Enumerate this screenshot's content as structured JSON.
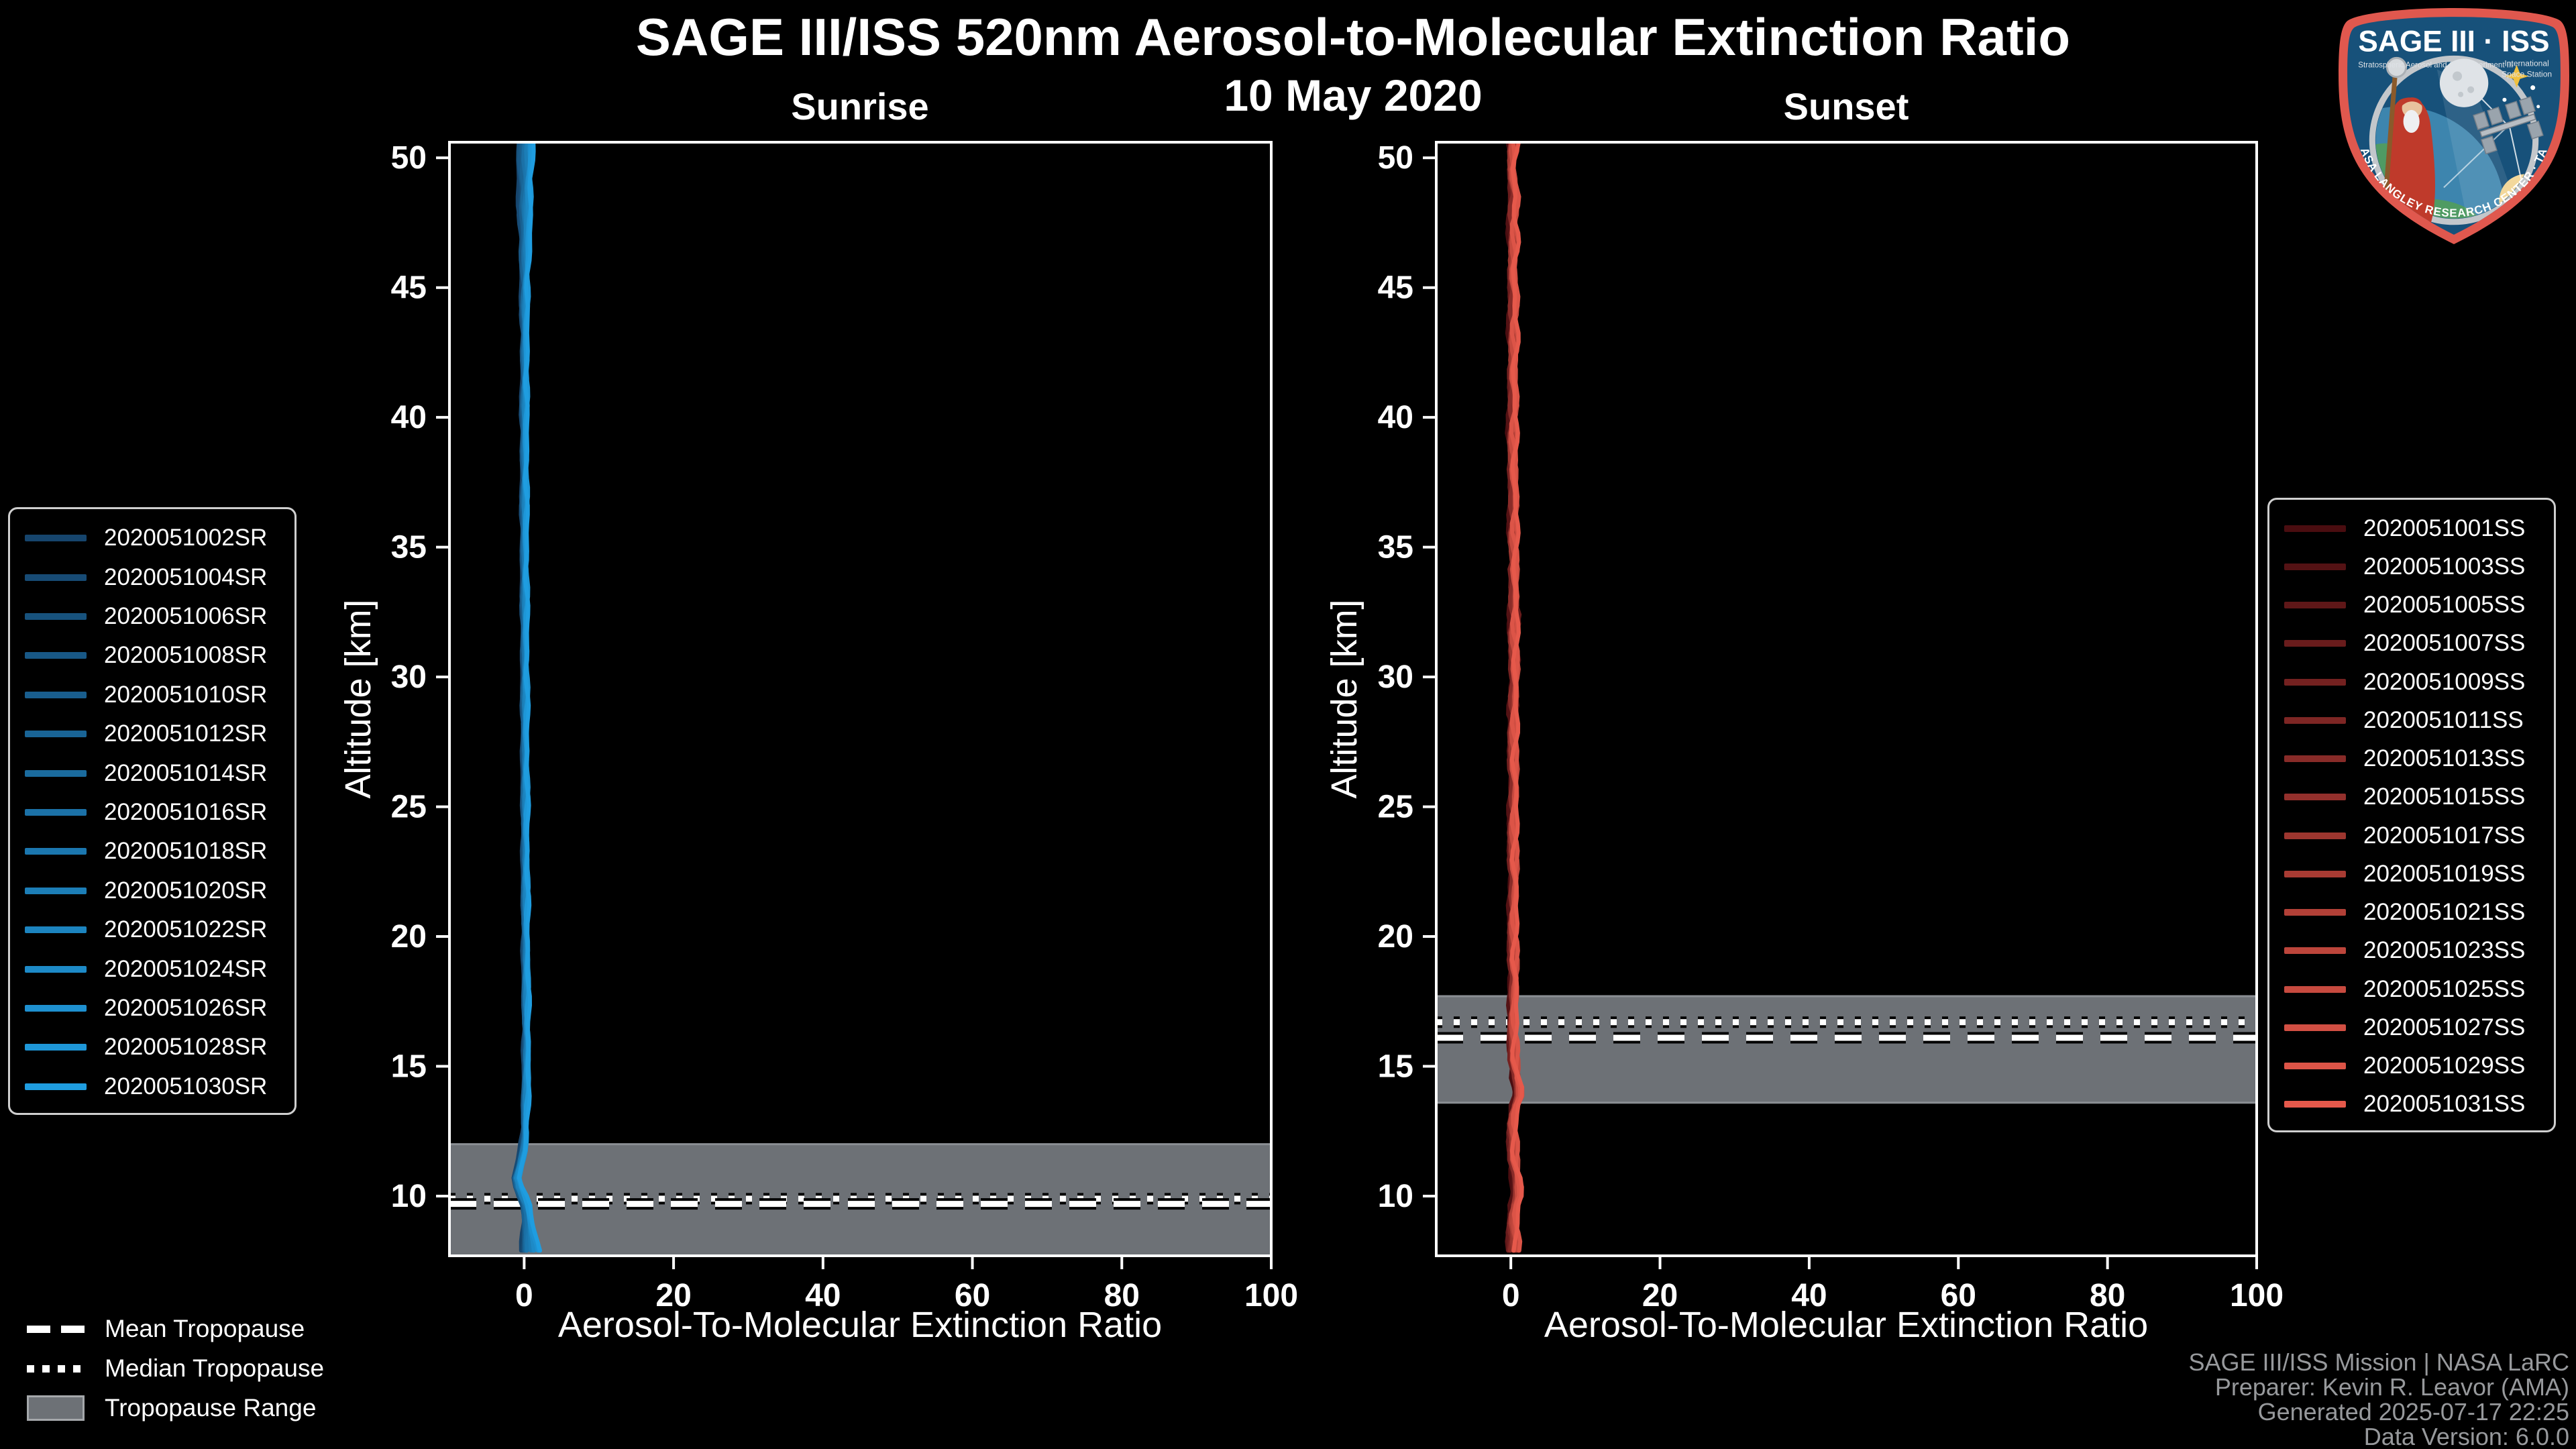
{
  "title": "SAGE III/ISS 520nm Aerosol-to-Molecular Extinction Ratio",
  "subtitle": "10 May 2020",
  "footer": {
    "lines": [
      "SAGE III/ISS Mission | NASA LaRC",
      "Preparer: Kevin R. Leavor (AMA)",
      "Generated 2025-07-17 22:25",
      "Data Version: 6.0.0"
    ]
  },
  "tropopause_legend": {
    "mean": "Mean Tropopause",
    "median": "Median Tropopause",
    "range": "Tropopause Range",
    "band_color": "#6d7176"
  },
  "logo": {
    "title": "SAGE III · ISS",
    "subtitle_left": "Stratospheric Aerosol and Gas Experiment III",
    "subtitle_right_1": "International",
    "subtitle_right_2": "Space Station",
    "bottom_text": "BALL · NASA LANGLEY RESEARCH CENTER · TAS-I · ESA",
    "border_color": "#e0584e",
    "field_color": "#17517a"
  },
  "chart_data": [
    {
      "type": "line",
      "panel": "Sunrise",
      "xlabel": "Aerosol-To-Molecular Extinction Ratio",
      "ylabel": "Altitude [km]",
      "xlim": [
        -10,
        100
      ],
      "ylim": [
        7.7,
        50.6
      ],
      "xticks": [
        0,
        20,
        40,
        60,
        80,
        100
      ],
      "yticks": [
        10,
        15,
        20,
        25,
        30,
        35,
        40,
        45,
        50
      ],
      "line_color_start": "#16456d",
      "line_color_end": "#1f9de0",
      "series_ids": [
        "2020051002SR",
        "2020051004SR",
        "2020051006SR",
        "2020051008SR",
        "2020051010SR",
        "2020051012SR",
        "2020051014SR",
        "2020051016SR",
        "2020051018SR",
        "2020051020SR",
        "2020051022SR",
        "2020051024SR",
        "2020051026SR",
        "2020051028SR",
        "2020051030SR"
      ],
      "profile_center": [
        [
          50.6,
          0.15
        ],
        [
          48,
          0.1
        ],
        [
          46,
          0.12
        ],
        [
          44,
          0.05
        ],
        [
          42,
          0.1
        ],
        [
          40,
          0.02
        ],
        [
          38,
          0.06
        ],
        [
          36,
          0.02
        ],
        [
          34,
          0.06
        ],
        [
          32,
          0.08
        ],
        [
          30,
          0.1
        ],
        [
          28,
          0.1
        ],
        [
          26,
          0.12
        ],
        [
          24,
          0.14
        ],
        [
          22,
          0.16
        ],
        [
          20,
          0.2
        ],
        [
          18,
          0.24
        ],
        [
          16,
          0.3
        ],
        [
          14.5,
          0.26
        ],
        [
          13.5,
          0.18
        ],
        [
          12.5,
          0.1
        ],
        [
          11.8,
          -0.1
        ],
        [
          11.2,
          -0.6
        ],
        [
          10.6,
          -1.15
        ],
        [
          10.1,
          -0.45
        ],
        [
          9.7,
          0.2
        ],
        [
          9.2,
          0.35
        ],
        [
          8.6,
          0.3
        ],
        [
          8.0,
          0.35
        ],
        [
          7.7,
          0.3
        ]
      ],
      "tropopause": {
        "mean_km": 9.7,
        "median_km": 9.9,
        "range_top_km": 12.0,
        "range_bottom_km": 7.7
      }
    },
    {
      "type": "line",
      "panel": "Sunset",
      "xlabel": "Aerosol-To-Molecular Extinction Ratio",
      "ylabel": "Altitude [km]",
      "xlim": [
        -10,
        100
      ],
      "ylim": [
        7.7,
        50.6
      ],
      "xticks": [
        0,
        20,
        40,
        60,
        80,
        100
      ],
      "yticks": [
        10,
        15,
        20,
        25,
        30,
        35,
        40,
        45,
        50
      ],
      "line_color_start": "#4a0d10",
      "line_color_end": "#e6594b",
      "series_ids": [
        "2020051001SS",
        "2020051003SS",
        "2020051005SS",
        "2020051007SS",
        "2020051009SS",
        "2020051011SS",
        "2020051013SS",
        "2020051015SS",
        "2020051017SS",
        "2020051019SS",
        "2020051021SS",
        "2020051023SS",
        "2020051025SS",
        "2020051027SS",
        "2020051029SS",
        "2020051031SS"
      ],
      "profile_center": [
        [
          50.6,
          0.3
        ],
        [
          49.5,
          0.15
        ],
        [
          48.5,
          0.45
        ],
        [
          47.5,
          0.2
        ],
        [
          46.5,
          0.4
        ],
        [
          45.5,
          0.2
        ],
        [
          44.5,
          0.4
        ],
        [
          43.5,
          0.25
        ],
        [
          42.5,
          0.4
        ],
        [
          41.5,
          0.2
        ],
        [
          40.5,
          0.35
        ],
        [
          39.5,
          0.2
        ],
        [
          38.5,
          0.3
        ],
        [
          37.5,
          0.25
        ],
        [
          36.5,
          0.4
        ],
        [
          35.5,
          0.3
        ],
        [
          34.5,
          0.45
        ],
        [
          33.5,
          0.3
        ],
        [
          32.5,
          0.4
        ],
        [
          31.5,
          0.35
        ],
        [
          30.5,
          0.5
        ],
        [
          29.5,
          0.3
        ],
        [
          28.5,
          0.35
        ],
        [
          27,
          0.3
        ],
        [
          25.5,
          0.35
        ],
        [
          24,
          0.3
        ],
        [
          22.5,
          0.32
        ],
        [
          21,
          0.3
        ],
        [
          19.5,
          0.32
        ],
        [
          18,
          0.3
        ],
        [
          17,
          0.32
        ],
        [
          16,
          0.3
        ],
        [
          15.2,
          0.38
        ],
        [
          14.5,
          0.6
        ],
        [
          14.1,
          1.05
        ],
        [
          13.8,
          1.0
        ],
        [
          13.4,
          0.5
        ],
        [
          12.8,
          0.25
        ],
        [
          12,
          0.28
        ],
        [
          11.2,
          0.35
        ],
        [
          10.5,
          0.75
        ],
        [
          10.0,
          0.85
        ],
        [
          9.5,
          0.4
        ],
        [
          9.0,
          0.3
        ],
        [
          8.4,
          0.35
        ],
        [
          7.7,
          0.3
        ]
      ],
      "tropopause": {
        "mean_km": 16.1,
        "median_km": 16.7,
        "range_top_km": 17.7,
        "range_bottom_km": 13.6
      }
    }
  ]
}
